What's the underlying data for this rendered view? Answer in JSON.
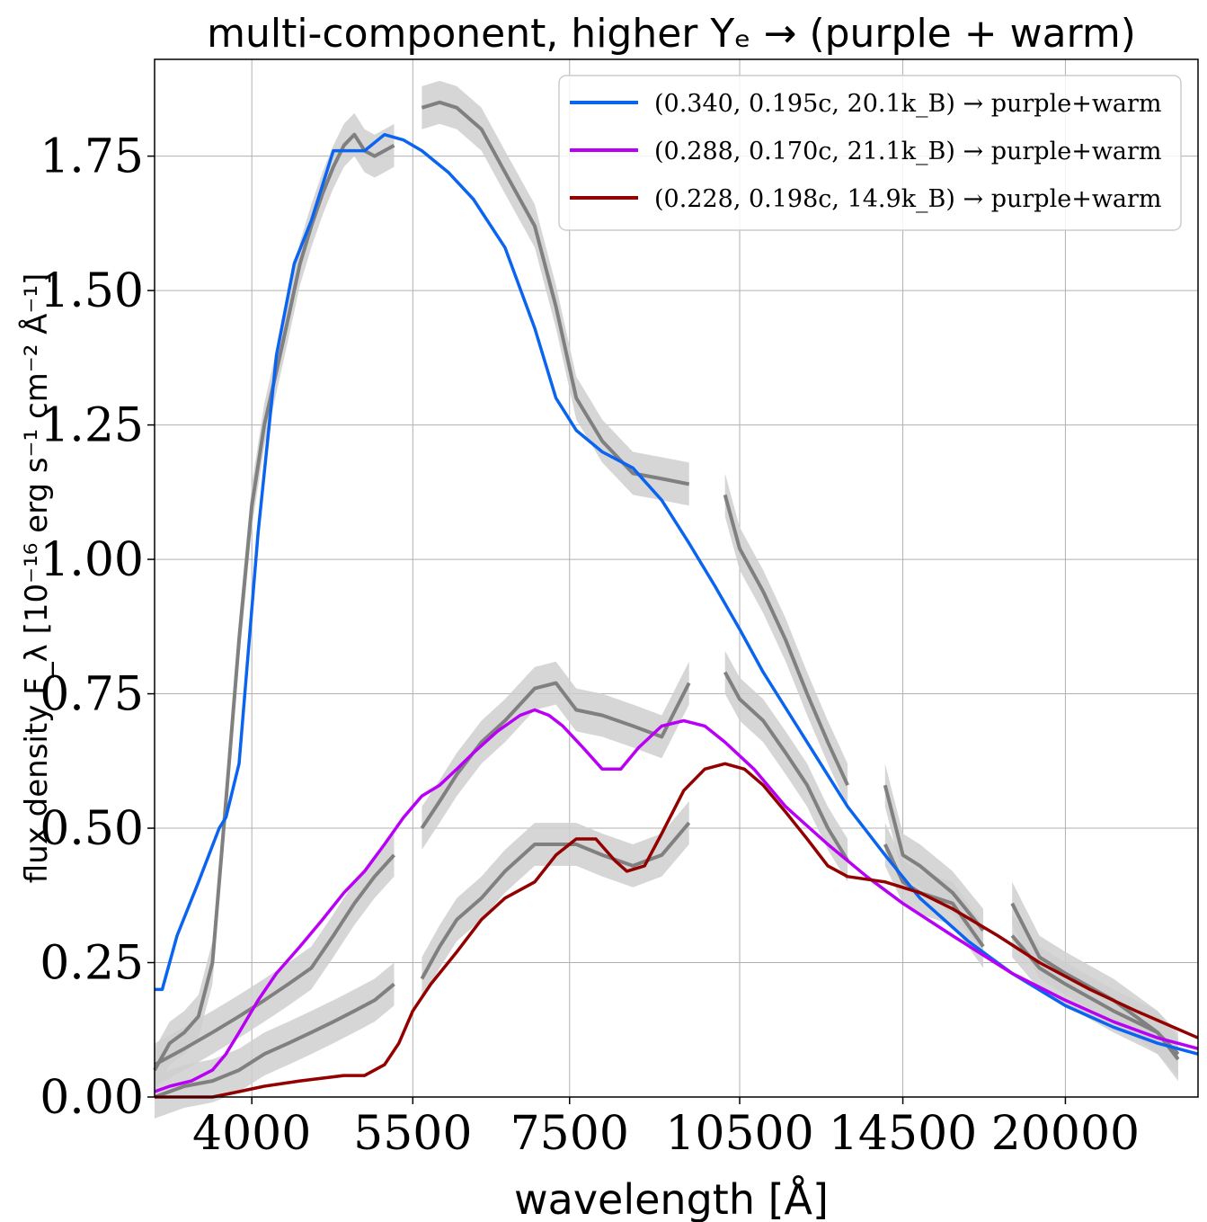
{
  "chart_data": {
    "type": "line",
    "title": "multi-component, higher Yₑ → (purple + warm)",
    "xlabel": "wavelength [Å]",
    "ylabel": "flux density F_λ [10⁻¹⁶ erg s⁻¹ cm⁻² Å⁻¹]",
    "x_scale": "log",
    "xlim": [
      3300,
      26000
    ],
    "ylim": [
      0.0,
      1.93
    ],
    "x_ticks": [
      4000,
      5500,
      7500,
      10500,
      14500,
      20000
    ],
    "x_tick_labels": [
      "4000",
      "5500",
      "7500",
      "10500",
      "14500",
      "20000"
    ],
    "y_ticks": [
      0.0,
      0.25,
      0.5,
      0.75,
      1.0,
      1.25,
      1.5,
      1.75
    ],
    "y_tick_labels": [
      "0.00",
      "0.25",
      "0.50",
      "0.75",
      "1.00",
      "1.25",
      "1.50",
      "1.75"
    ],
    "grid": true,
    "legend_position": "top-right",
    "colors": {
      "blue": "#0a64f0",
      "purple": "#b800f5",
      "red": "#920000",
      "observed": "#808080",
      "band": "#cfcfcf"
    },
    "series": [
      {
        "name": "(0.340, 0.195c, 20.1k_B) → purple+warm",
        "color": "#0a64f0",
        "x": [
          3300,
          3350,
          3450,
          3600,
          3750,
          3800,
          3900,
          4050,
          4200,
          4350,
          4500,
          4700,
          4850,
          5000,
          5200,
          5400,
          5600,
          5900,
          6200,
          6600,
          7000,
          7300,
          7600,
          8000,
          8500,
          9000,
          9500,
          10000,
          10500,
          11000,
          12000,
          13000,
          14000,
          15000,
          16500,
          18000,
          20000,
          22000,
          24000,
          26000
        ],
        "y": [
          0.2,
          0.2,
          0.3,
          0.4,
          0.5,
          0.52,
          0.62,
          1.05,
          1.38,
          1.55,
          1.63,
          1.76,
          1.76,
          1.76,
          1.79,
          1.78,
          1.76,
          1.72,
          1.67,
          1.58,
          1.43,
          1.3,
          1.24,
          1.2,
          1.17,
          1.11,
          1.03,
          0.95,
          0.87,
          0.79,
          0.66,
          0.54,
          0.45,
          0.37,
          0.29,
          0.23,
          0.17,
          0.13,
          0.1,
          0.08
        ]
      },
      {
        "name": "(0.288, 0.170c, 21.1k_B) → purple+warm",
        "color": "#b800f5",
        "x": [
          3300,
          3400,
          3550,
          3700,
          3800,
          3900,
          4050,
          4200,
          4400,
          4600,
          4800,
          5000,
          5200,
          5400,
          5600,
          5800,
          6000,
          6200,
          6500,
          6800,
          7000,
          7200,
          7400,
          7700,
          8000,
          8300,
          8600,
          9000,
          9400,
          9800,
          10200,
          10800,
          11500,
          12500,
          13500,
          14500,
          16000,
          18000,
          20000,
          22000,
          24000,
          26000
        ],
        "y": [
          0.01,
          0.02,
          0.03,
          0.05,
          0.08,
          0.12,
          0.18,
          0.23,
          0.28,
          0.33,
          0.38,
          0.42,
          0.47,
          0.52,
          0.56,
          0.58,
          0.61,
          0.64,
          0.68,
          0.71,
          0.72,
          0.71,
          0.69,
          0.65,
          0.61,
          0.61,
          0.65,
          0.69,
          0.7,
          0.69,
          0.66,
          0.61,
          0.54,
          0.47,
          0.41,
          0.36,
          0.3,
          0.23,
          0.18,
          0.14,
          0.11,
          0.09
        ]
      },
      {
        "name": "(0.228, 0.198c, 14.9k_B) → purple+warm",
        "color": "#920000",
        "x": [
          3300,
          3500,
          3700,
          3900,
          4100,
          4400,
          4800,
          5000,
          5200,
          5350,
          5500,
          5700,
          6000,
          6300,
          6600,
          7000,
          7300,
          7600,
          7900,
          8200,
          8400,
          8700,
          9000,
          9400,
          9800,
          10200,
          10600,
          11000,
          11500,
          12000,
          12500,
          13000,
          14000,
          15000,
          16000,
          17500,
          19000,
          21000,
          23000,
          26000
        ],
        "y": [
          0.0,
          0.0,
          0.0,
          0.01,
          0.02,
          0.03,
          0.04,
          0.04,
          0.06,
          0.1,
          0.16,
          0.21,
          0.27,
          0.33,
          0.37,
          0.4,
          0.45,
          0.48,
          0.48,
          0.44,
          0.42,
          0.43,
          0.49,
          0.57,
          0.61,
          0.62,
          0.61,
          0.58,
          0.53,
          0.48,
          0.43,
          0.41,
          0.4,
          0.38,
          0.35,
          0.3,
          0.25,
          0.2,
          0.16,
          0.11
        ]
      }
    ],
    "observed_spectra": [
      {
        "segments": [
          {
            "x": [
              3300,
              3400,
              3500,
              3600,
              3700,
              3800,
              3900,
              4000,
              4100,
              4200,
              4300,
              4400,
              4500,
              4600,
              4700,
              4800,
              4900,
              5000,
              5100,
              5200,
              5300
            ],
            "y": [
              0.05,
              0.1,
              0.12,
              0.15,
              0.25,
              0.55,
              0.85,
              1.1,
              1.25,
              1.35,
              1.45,
              1.55,
              1.62,
              1.68,
              1.73,
              1.77,
              1.79,
              1.76,
              1.75,
              1.76,
              1.77
            ]
          },
          {
            "x": [
              5600,
              5800,
              6000,
              6300,
              6600,
              7000,
              7300,
              7600,
              8000,
              8500,
              9000,
              9500
            ],
            "y": [
              1.84,
              1.85,
              1.84,
              1.8,
              1.72,
              1.62,
              1.47,
              1.3,
              1.22,
              1.16,
              1.15,
              1.14
            ]
          },
          {
            "x": [
              10200,
              10500,
              11000,
              11500,
              12000,
              12500,
              13000
            ],
            "y": [
              1.12,
              1.02,
              0.94,
              0.85,
              0.75,
              0.66,
              0.58
            ]
          },
          {
            "x": [
              14000,
              14500,
              15000,
              16000,
              17000
            ],
            "y": [
              0.58,
              0.45,
              0.43,
              0.38,
              0.31
            ]
          },
          {
            "x": [
              18000,
              19000,
              20000,
              22000,
              24000,
              25000
            ],
            "y": [
              0.36,
              0.26,
              0.23,
              0.18,
              0.12,
              0.08
            ]
          }
        ]
      },
      {
        "segments": [
          {
            "x": [
              3300,
              3500,
              3700,
              3900,
              4100,
              4300,
              4500,
              4700,
              4900,
              5100,
              5300
            ],
            "y": [
              0.06,
              0.09,
              0.12,
              0.15,
              0.18,
              0.21,
              0.24,
              0.3,
              0.36,
              0.41,
              0.45
            ]
          },
          {
            "x": [
              5600,
              5800,
              6000,
              6300,
              6600,
              7000,
              7300,
              7600,
              8000,
              8500,
              9000,
              9500
            ],
            "y": [
              0.5,
              0.55,
              0.6,
              0.66,
              0.7,
              0.76,
              0.77,
              0.72,
              0.71,
              0.69,
              0.67,
              0.77
            ]
          },
          {
            "x": [
              10200,
              10500,
              11000,
              11500,
              12000,
              12500,
              13000
            ],
            "y": [
              0.79,
              0.74,
              0.7,
              0.64,
              0.58,
              0.5,
              0.44
            ]
          },
          {
            "x": [
              14000,
              14500,
              15000,
              16000,
              17000
            ],
            "y": [
              0.47,
              0.4,
              0.38,
              0.36,
              0.28
            ]
          },
          {
            "x": [
              18000,
              19000,
              20000,
              22000,
              24000,
              25000
            ],
            "y": [
              0.3,
              0.24,
              0.21,
              0.16,
              0.12,
              0.07
            ]
          }
        ]
      },
      {
        "segments": [
          {
            "x": [
              3300,
              3500,
              3700,
              3900,
              4100,
              4300,
              4500,
              4700,
              4900,
              5100,
              5300
            ],
            "y": [
              0.0,
              0.02,
              0.03,
              0.05,
              0.08,
              0.1,
              0.12,
              0.14,
              0.16,
              0.18,
              0.21
            ]
          },
          {
            "x": [
              5600,
              5800,
              6000,
              6300,
              6600,
              7000,
              7300,
              7600,
              8000,
              8500,
              9000,
              9500
            ],
            "y": [
              0.22,
              0.28,
              0.33,
              0.37,
              0.42,
              0.47,
              0.47,
              0.47,
              0.45,
              0.43,
              0.45,
              0.51
            ]
          }
        ]
      }
    ],
    "legend": [
      {
        "label": "(0.340, 0.195c, 20.1k_B) → purple+warm",
        "color": "#0a64f0"
      },
      {
        "label": "(0.288, 0.170c, 21.1k_B) → purple+warm",
        "color": "#b800f5"
      },
      {
        "label": "(0.228, 0.198c, 14.9k_B) → purple+warm",
        "color": "#920000"
      }
    ]
  }
}
